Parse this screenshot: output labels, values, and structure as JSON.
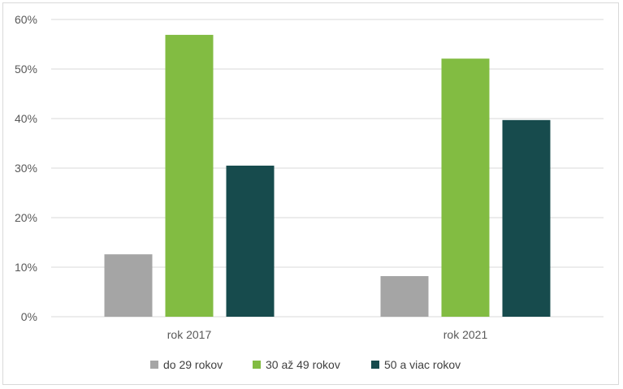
{
  "chart_data": {
    "type": "bar",
    "title": "",
    "xlabel": "",
    "ylabel": "",
    "categories": [
      "rok 2017",
      "rok 2021"
    ],
    "series": [
      {
        "name": "do 29 rokov",
        "color": "#a5a5a5",
        "values": [
          12.6,
          8.2
        ]
      },
      {
        "name": "30 až 49 rokov",
        "color": "#82bc42",
        "values": [
          56.9,
          52.1
        ]
      },
      {
        "name": "50 a viac rokov",
        "color": "#174b4d",
        "values": [
          30.5,
          39.7
        ]
      }
    ],
    "ylim": [
      0,
      60
    ],
    "yticks": [
      0,
      10,
      20,
      30,
      40,
      50,
      60
    ],
    "ytick_labels": [
      "0%",
      "10%",
      "20%",
      "30%",
      "40%",
      "50%",
      "60%"
    ],
    "grid": true,
    "legend_position": "bottom",
    "gridline_color": "#d9d9d9"
  }
}
